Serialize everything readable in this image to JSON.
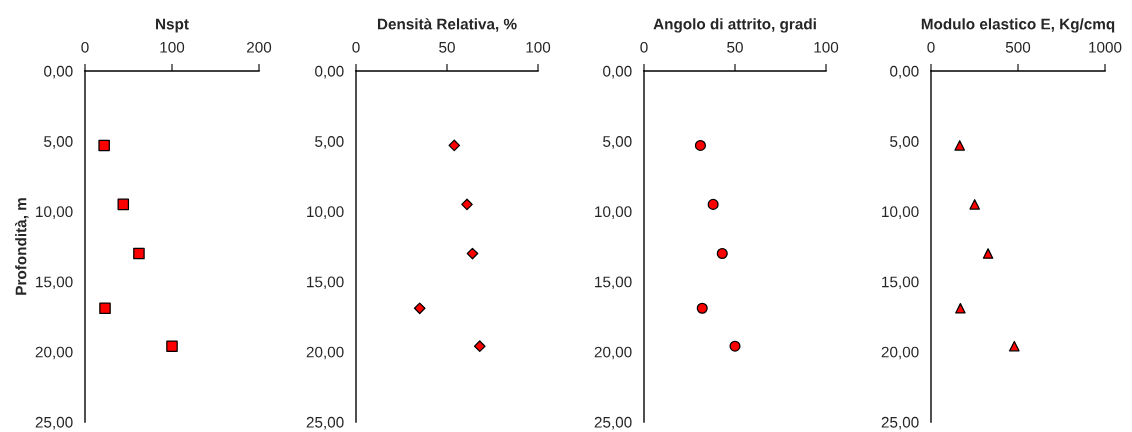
{
  "chart_data": [
    {
      "type": "scatter",
      "title": "Nspt",
      "ylabel": "Profondità, m",
      "marker": "square",
      "grid": false,
      "xlim": [
        0,
        200
      ],
      "xticks": [
        0,
        100,
        200
      ],
      "ylim": [
        25,
        0
      ],
      "yticks": [
        {
          "value": 0,
          "label": "0,00"
        },
        {
          "value": 5,
          "label": "5,00"
        },
        {
          "value": 10,
          "label": "10,00"
        },
        {
          "value": 15,
          "label": "15,00"
        },
        {
          "value": 20,
          "label": "20,00"
        },
        {
          "value": 25,
          "label": "25,00"
        }
      ],
      "series": [
        {
          "color": "#ff0000",
          "x": [
            22,
            44,
            62,
            23,
            100
          ],
          "values": [
            5.3,
            9.5,
            13.0,
            16.9,
            19.6
          ]
        }
      ]
    },
    {
      "type": "scatter",
      "title": "Densità Relativa, %",
      "marker": "diamond",
      "grid": false,
      "xlim": [
        0,
        100
      ],
      "xticks": [
        0,
        50,
        100
      ],
      "ylim": [
        25,
        0
      ],
      "yticks": [
        {
          "value": 0,
          "label": "0,00"
        },
        {
          "value": 5,
          "label": "5,00"
        },
        {
          "value": 10,
          "label": "10,00"
        },
        {
          "value": 15,
          "label": "15,00"
        },
        {
          "value": 20,
          "label": "20,00"
        },
        {
          "value": 25,
          "label": "25,00"
        }
      ],
      "series": [
        {
          "color": "#ff0000",
          "x": [
            54,
            61,
            64,
            35,
            68
          ],
          "values": [
            5.3,
            9.5,
            13.0,
            16.9,
            19.6
          ]
        }
      ]
    },
    {
      "type": "scatter",
      "title": "Angolo di attrito, gradi",
      "marker": "circle",
      "grid": false,
      "xlim": [
        0,
        100
      ],
      "xticks": [
        0,
        50,
        100
      ],
      "ylim": [
        25,
        0
      ],
      "yticks": [
        {
          "value": 0,
          "label": "0,00"
        },
        {
          "value": 5,
          "label": "5,00"
        },
        {
          "value": 10,
          "label": "10,00"
        },
        {
          "value": 15,
          "label": "15,00"
        },
        {
          "value": 20,
          "label": "20,00"
        },
        {
          "value": 25,
          "label": "25,00"
        }
      ],
      "series": [
        {
          "color": "#ff0000",
          "x": [
            31,
            38,
            43,
            32,
            50
          ],
          "values": [
            5.3,
            9.5,
            13.0,
            16.9,
            19.6
          ]
        }
      ]
    },
    {
      "type": "scatter",
      "title": "Modulo elastico E, Kg/cmq",
      "marker": "triangle",
      "grid": false,
      "xlim": [
        0,
        1000
      ],
      "xticks": [
        0,
        500,
        1000
      ],
      "ylim": [
        25,
        0
      ],
      "yticks": [
        {
          "value": 0,
          "label": "0,00"
        },
        {
          "value": 5,
          "label": "5,00"
        },
        {
          "value": 10,
          "label": "10,00"
        },
        {
          "value": 15,
          "label": "15,00"
        },
        {
          "value": 20,
          "label": "20,00"
        },
        {
          "value": 25,
          "label": "25,00"
        }
      ],
      "series": [
        {
          "color": "#ff0000",
          "x": [
            165,
            251,
            328,
            169,
            479
          ],
          "values": [
            5.3,
            9.5,
            13.0,
            16.9,
            19.6
          ]
        }
      ]
    }
  ]
}
